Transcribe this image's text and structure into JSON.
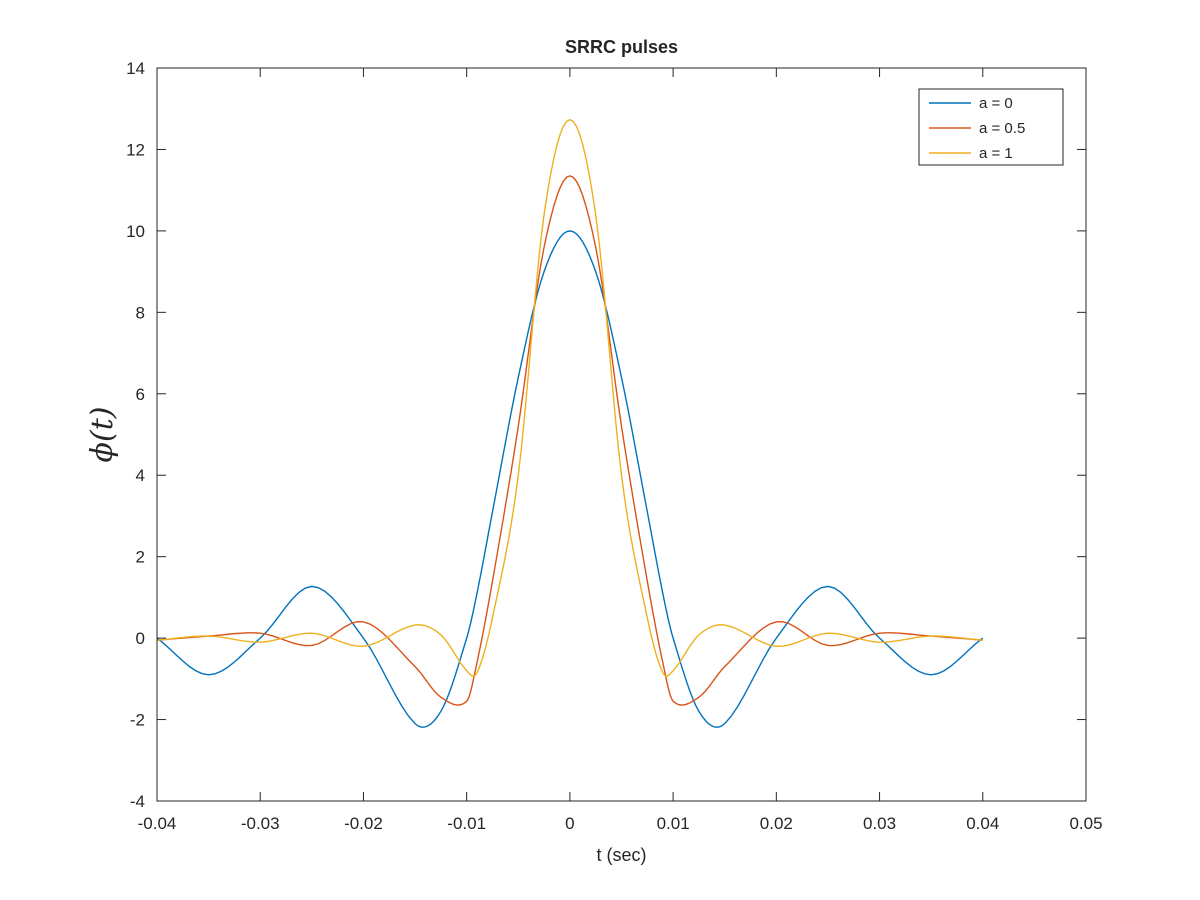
{
  "chart_data": {
    "type": "line",
    "title": "SRRC pulses",
    "xlabel": "t (sec)",
    "ylabel": "ϕ(t)",
    "xlim": [
      -0.04,
      0.05
    ],
    "ylim": [
      -4,
      14
    ],
    "x_ticks": [
      -0.04,
      -0.03,
      -0.02,
      -0.01,
      0,
      0.01,
      0.02,
      0.03,
      0.04,
      0.05
    ],
    "x_tick_labels": [
      "-0.04",
      "-0.03",
      "-0.02",
      "-0.01",
      "0",
      "0.01",
      "0.02",
      "0.03",
      "0.04",
      "0.05"
    ],
    "y_ticks": [
      -4,
      -2,
      0,
      2,
      4,
      6,
      8,
      10,
      12,
      14
    ],
    "y_tick_labels": [
      "-4",
      "-2",
      "0",
      "2",
      "4",
      "6",
      "8",
      "10",
      "12",
      "14"
    ],
    "grid": false,
    "legend_position": "top-right",
    "x": [
      -0.04,
      -0.035,
      -0.03,
      -0.025,
      -0.02,
      -0.015,
      -0.0125,
      -0.01,
      -0.009,
      -0.0075,
      -0.005,
      -0.0025,
      0,
      0.0025,
      0.005,
      0.0075,
      0.009,
      0.01,
      0.0125,
      0.015,
      0.02,
      0.025,
      0.03,
      0.035,
      0.04
    ],
    "series": [
      {
        "name": "a = 0",
        "color": "#0072BD",
        "values": [
          0,
          -0.9,
          0,
          1.27,
          0,
          -2.1,
          -1.8,
          0,
          1.1,
          3.1,
          6.4,
          9.0,
          10.0,
          9.0,
          6.4,
          3.1,
          1.1,
          0,
          -1.8,
          -2.1,
          0,
          1.27,
          0,
          -0.9,
          0
        ]
      },
      {
        "name": "a = 0.5",
        "color": "#D95319",
        "values": [
          -0.05,
          0.05,
          0.12,
          -0.18,
          0.4,
          -0.7,
          -1.45,
          -1.55,
          -0.6,
          1.4,
          5.2,
          9.6,
          11.35,
          9.6,
          5.2,
          1.4,
          -0.6,
          -1.55,
          -1.45,
          -0.7,
          0.4,
          -0.18,
          0.12,
          0.05,
          -0.05
        ]
      },
      {
        "name": "a = 1",
        "color": "#EDB120",
        "values": [
          -0.05,
          0.05,
          -0.1,
          0.12,
          -0.2,
          0.32,
          0.08,
          -0.8,
          -0.85,
          0.5,
          4.0,
          10.4,
          12.73,
          10.4,
          4.0,
          0.5,
          -0.85,
          -0.8,
          0.08,
          0.32,
          -0.2,
          0.12,
          -0.1,
          0.05,
          -0.05
        ]
      }
    ]
  }
}
